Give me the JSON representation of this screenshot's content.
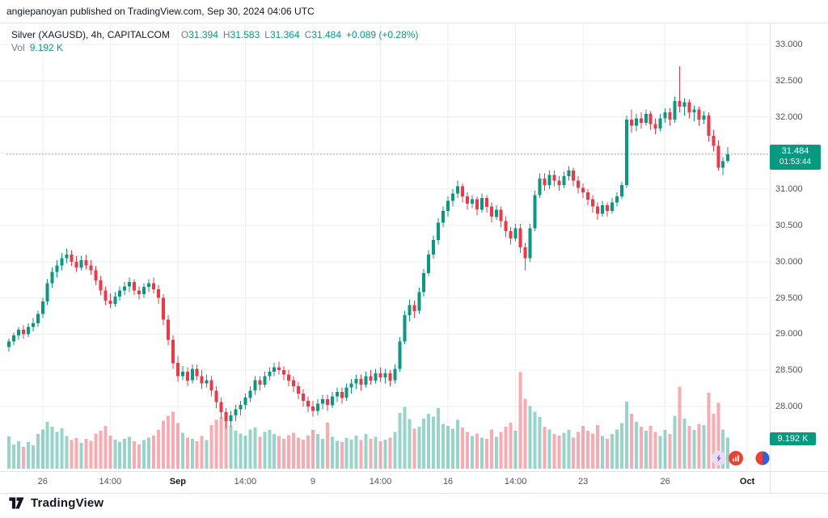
{
  "attribution": "angiepanoyan published on TradingView.com, Sep 30, 2024 04:06 UTC",
  "legend": {
    "title": "Silver (XAGUSD), 4h, CAPITALCOM",
    "o_label": "O",
    "o": "31.394",
    "h_label": "H",
    "h": "31.583",
    "l_label": "L",
    "l": "31.364",
    "c_label": "C",
    "c": "31.484",
    "change": "+0.089 (+0.28%)",
    "vol_label": "Vol",
    "vol_value": "9.192 K"
  },
  "badges": {
    "price": "31.484",
    "countdown": "01:53:44",
    "volume": "9.192 K"
  },
  "footer": {
    "logo_text": "TradingView"
  },
  "colors": {
    "up": "#089981",
    "down": "#f23645",
    "grid": "#eceff2",
    "axis_text": "#50535e",
    "last_line": "#a3a6af"
  },
  "chart_data": {
    "type": "candlestick",
    "symbol": "Silver (XAGUSD)",
    "interval": "4h",
    "exchange": "CAPITALCOM",
    "title": "Silver (XAGUSD), 4h, CAPITALCOM",
    "ohlc_readout": {
      "open": 31.394,
      "high": 31.583,
      "low": 31.364,
      "close": 31.484,
      "change": "+0.089",
      "change_pct": "+0.28%"
    },
    "last_price": 31.484,
    "countdown": "01:53:44",
    "volume_readout_k": 9.192,
    "y_axis": {
      "min": 28.0,
      "max": 33.0,
      "step": 0.5,
      "ticks": [
        {
          "v": 33.0,
          "t": "33.000"
        },
        {
          "v": 32.5,
          "t": "32.500"
        },
        {
          "v": 32.0,
          "t": "32.000"
        },
        {
          "v": 31.5,
          "t": "31.500"
        },
        {
          "v": 31.0,
          "t": "31.000"
        },
        {
          "v": 30.5,
          "t": "30.500"
        },
        {
          "v": 30.0,
          "t": "30.000"
        },
        {
          "v": 29.5,
          "t": "29.500"
        },
        {
          "v": 29.0,
          "t": "29.000"
        },
        {
          "v": 28.5,
          "t": "28.500"
        },
        {
          "v": 28.0,
          "t": "28.000"
        }
      ]
    },
    "x_axis": {
      "labels": [
        {
          "t": "26",
          "i": 7
        },
        {
          "t": "14:00",
          "i": 21
        },
        {
          "t": "Sep",
          "i": 35,
          "b": 1
        },
        {
          "t": "14:00",
          "i": 49
        },
        {
          "t": "9",
          "i": 63
        },
        {
          "t": "14:00",
          "i": 77
        },
        {
          "t": "16",
          "i": 91
        },
        {
          "t": "14:00",
          "i": 105
        },
        {
          "t": "23",
          "i": 119
        },
        {
          "t": "26",
          "i": 136
        },
        {
          "t": "Oct",
          "i": 153,
          "b": 1
        }
      ]
    },
    "candles": [
      [
        28.82,
        28.94,
        28.76,
        28.9
      ],
      [
        28.9,
        29.02,
        28.85,
        28.98
      ],
      [
        28.98,
        29.1,
        28.92,
        29.06
      ],
      [
        29.06,
        29.12,
        28.94,
        29.0
      ],
      [
        29.0,
        29.15,
        28.96,
        29.1
      ],
      [
        29.1,
        29.22,
        29.04,
        29.15
      ],
      [
        29.15,
        29.32,
        29.1,
        29.28
      ],
      [
        29.28,
        29.5,
        29.22,
        29.45
      ],
      [
        29.45,
        29.76,
        29.4,
        29.7
      ],
      [
        29.7,
        29.92,
        29.64,
        29.86
      ],
      [
        29.86,
        30.02,
        29.78,
        29.95
      ],
      [
        29.95,
        30.12,
        29.88,
        30.05
      ],
      [
        30.05,
        30.18,
        29.98,
        30.1
      ],
      [
        30.1,
        30.16,
        29.94,
        30.0
      ],
      [
        30.0,
        30.08,
        29.86,
        29.92
      ],
      [
        29.92,
        30.08,
        29.88,
        30.02
      ],
      [
        30.02,
        30.1,
        29.9,
        29.95
      ],
      [
        29.95,
        30.02,
        29.82,
        29.88
      ],
      [
        29.88,
        29.94,
        29.68,
        29.74
      ],
      [
        29.74,
        29.8,
        29.54,
        29.6
      ],
      [
        29.6,
        29.66,
        29.4,
        29.46
      ],
      [
        29.46,
        29.56,
        29.36,
        29.42
      ],
      [
        29.42,
        29.58,
        29.38,
        29.52
      ],
      [
        29.52,
        29.66,
        29.46,
        29.6
      ],
      [
        29.6,
        29.72,
        29.54,
        29.66
      ],
      [
        29.66,
        29.78,
        29.58,
        29.72
      ],
      [
        29.72,
        29.76,
        29.54,
        29.6
      ],
      [
        29.6,
        29.66,
        29.48,
        29.55
      ],
      [
        29.55,
        29.7,
        29.5,
        29.65
      ],
      [
        29.65,
        29.76,
        29.58,
        29.7
      ],
      [
        29.7,
        29.78,
        29.56,
        29.62
      ],
      [
        29.62,
        29.68,
        29.42,
        29.5
      ],
      [
        29.5,
        29.55,
        29.12,
        29.2
      ],
      [
        29.2,
        29.26,
        28.84,
        28.92
      ],
      [
        28.92,
        28.98,
        28.52,
        28.6
      ],
      [
        28.6,
        28.7,
        28.34,
        28.42
      ],
      [
        28.42,
        28.56,
        28.36,
        28.48
      ],
      [
        28.48,
        28.54,
        28.28,
        28.36
      ],
      [
        28.36,
        28.58,
        28.32,
        28.52
      ],
      [
        28.52,
        28.58,
        28.36,
        28.42
      ],
      [
        28.42,
        28.5,
        28.24,
        28.32
      ],
      [
        28.32,
        28.44,
        28.26,
        28.36
      ],
      [
        28.36,
        28.42,
        28.14,
        28.22
      ],
      [
        28.22,
        28.28,
        27.98,
        28.06
      ],
      [
        28.06,
        28.12,
        27.84,
        27.92
      ],
      [
        27.92,
        27.98,
        27.7,
        27.8
      ],
      [
        27.8,
        27.94,
        27.72,
        27.88
      ],
      [
        27.88,
        28.02,
        27.8,
        27.96
      ],
      [
        27.96,
        28.08,
        27.88,
        28.02
      ],
      [
        28.02,
        28.18,
        27.96,
        28.12
      ],
      [
        28.12,
        28.28,
        28.06,
        28.22
      ],
      [
        28.22,
        28.42,
        28.16,
        28.36
      ],
      [
        28.36,
        28.42,
        28.22,
        28.3
      ],
      [
        28.3,
        28.48,
        28.26,
        28.42
      ],
      [
        28.42,
        28.54,
        28.36,
        28.48
      ],
      [
        28.48,
        28.6,
        28.42,
        28.54
      ],
      [
        28.54,
        28.62,
        28.44,
        28.5
      ],
      [
        28.5,
        28.56,
        28.36,
        28.44
      ],
      [
        28.44,
        28.5,
        28.28,
        28.36
      ],
      [
        28.36,
        28.42,
        28.2,
        28.28
      ],
      [
        28.28,
        28.34,
        28.1,
        28.18
      ],
      [
        28.18,
        28.24,
        28.0,
        28.08
      ],
      [
        28.08,
        28.14,
        27.92,
        28.0
      ],
      [
        28.0,
        28.08,
        27.86,
        27.94
      ],
      [
        27.94,
        28.1,
        27.88,
        28.04
      ],
      [
        28.04,
        28.16,
        27.96,
        28.1
      ],
      [
        28.1,
        28.16,
        27.94,
        28.02
      ],
      [
        28.02,
        28.2,
        27.98,
        28.14
      ],
      [
        28.14,
        28.26,
        28.06,
        28.2
      ],
      [
        28.2,
        28.26,
        28.04,
        28.12
      ],
      [
        28.12,
        28.32,
        28.08,
        28.26
      ],
      [
        28.26,
        28.38,
        28.18,
        28.32
      ],
      [
        28.32,
        28.44,
        28.24,
        28.38
      ],
      [
        28.38,
        28.44,
        28.22,
        28.3
      ],
      [
        28.3,
        28.48,
        28.26,
        28.42
      ],
      [
        28.42,
        28.5,
        28.3,
        28.36
      ],
      [
        28.36,
        28.52,
        28.32,
        28.46
      ],
      [
        28.46,
        28.54,
        28.34,
        28.4
      ],
      [
        28.4,
        28.52,
        28.32,
        28.46
      ],
      [
        28.46,
        28.5,
        28.28,
        28.36
      ],
      [
        28.36,
        28.58,
        28.32,
        28.52
      ],
      [
        28.52,
        28.96,
        28.48,
        28.9
      ],
      [
        28.9,
        29.32,
        28.86,
        29.26
      ],
      [
        29.26,
        29.48,
        29.18,
        29.4
      ],
      [
        29.4,
        29.46,
        29.22,
        29.32
      ],
      [
        29.32,
        29.64,
        29.28,
        29.58
      ],
      [
        29.58,
        29.9,
        29.52,
        29.84
      ],
      [
        29.84,
        30.16,
        29.8,
        30.1
      ],
      [
        30.1,
        30.36,
        30.04,
        30.3
      ],
      [
        30.3,
        30.6,
        30.24,
        30.54
      ],
      [
        30.54,
        30.76,
        30.48,
        30.7
      ],
      [
        30.7,
        30.9,
        30.62,
        30.84
      ],
      [
        30.84,
        31.0,
        30.76,
        30.94
      ],
      [
        30.94,
        31.12,
        30.88,
        31.04
      ],
      [
        31.04,
        31.08,
        30.82,
        30.9
      ],
      [
        30.9,
        30.96,
        30.72,
        30.8
      ],
      [
        30.8,
        30.92,
        30.74,
        30.86
      ],
      [
        30.86,
        30.9,
        30.64,
        30.72
      ],
      [
        30.72,
        30.94,
        30.68,
        30.88
      ],
      [
        30.88,
        30.92,
        30.68,
        30.76
      ],
      [
        30.76,
        30.82,
        30.54,
        30.62
      ],
      [
        30.62,
        30.78,
        30.58,
        30.72
      ],
      [
        30.72,
        30.76,
        30.48,
        30.56
      ],
      [
        30.56,
        30.62,
        30.34,
        30.42
      ],
      [
        30.42,
        30.48,
        30.24,
        30.32
      ],
      [
        30.32,
        30.52,
        30.28,
        30.46
      ],
      [
        30.46,
        30.52,
        30.12,
        30.2
      ],
      [
        30.2,
        30.26,
        29.88,
        30.05
      ],
      [
        30.05,
        30.52,
        30.0,
        30.46
      ],
      [
        30.46,
        30.98,
        30.42,
        30.92
      ],
      [
        30.92,
        31.22,
        30.88,
        31.15
      ],
      [
        31.15,
        31.22,
        30.98,
        31.06
      ],
      [
        31.06,
        31.26,
        31.0,
        31.2
      ],
      [
        31.2,
        31.26,
        31.04,
        31.12
      ],
      [
        31.12,
        31.18,
        30.98,
        31.06
      ],
      [
        31.06,
        31.24,
        31.02,
        31.18
      ],
      [
        31.18,
        31.32,
        31.12,
        31.26
      ],
      [
        31.26,
        31.3,
        31.04,
        31.12
      ],
      [
        31.12,
        31.18,
        30.94,
        31.02
      ],
      [
        31.02,
        31.08,
        30.88,
        30.96
      ],
      [
        30.96,
        31.0,
        30.78,
        30.86
      ],
      [
        30.86,
        30.92,
        30.68,
        30.76
      ],
      [
        30.76,
        30.82,
        30.58,
        30.66
      ],
      [
        30.66,
        30.84,
        30.62,
        30.78
      ],
      [
        30.78,
        30.82,
        30.62,
        30.7
      ],
      [
        30.7,
        30.88,
        30.66,
        30.82
      ],
      [
        30.82,
        30.96,
        30.76,
        30.9
      ],
      [
        30.9,
        31.1,
        30.86,
        31.06
      ],
      [
        31.06,
        32.02,
        31.02,
        31.96
      ],
      [
        31.96,
        32.1,
        31.78,
        31.88
      ],
      [
        31.88,
        32.04,
        31.8,
        31.98
      ],
      [
        31.98,
        32.06,
        31.84,
        31.92
      ],
      [
        31.92,
        32.1,
        31.88,
        32.04
      ],
      [
        32.04,
        32.08,
        31.82,
        31.9
      ],
      [
        31.9,
        31.98,
        31.76,
        31.84
      ],
      [
        31.84,
        32.04,
        31.8,
        31.98
      ],
      [
        31.98,
        32.12,
        31.92,
        32.06
      ],
      [
        32.06,
        32.12,
        31.88,
        31.96
      ],
      [
        31.96,
        32.28,
        31.92,
        32.22
      ],
      [
        32.22,
        32.7,
        32.06,
        32.14
      ],
      [
        32.14,
        32.26,
        32.02,
        32.2
      ],
      [
        32.2,
        32.24,
        31.98,
        32.06
      ],
      [
        32.06,
        32.16,
        31.94,
        32.1
      ],
      [
        32.1,
        32.14,
        31.88,
        31.96
      ],
      [
        31.96,
        32.08,
        31.9,
        32.02
      ],
      [
        32.02,
        32.06,
        31.66,
        31.74
      ],
      [
        31.74,
        31.82,
        31.52,
        31.6
      ],
      [
        31.6,
        31.68,
        31.26,
        31.3
      ],
      [
        31.3,
        31.45,
        31.2,
        31.39
      ],
      [
        31.394,
        31.583,
        31.364,
        31.484
      ]
    ],
    "volumes_k": [
      9.5,
      7.2,
      8.1,
      6.4,
      7.8,
      6.9,
      10.2,
      11.5,
      13.8,
      12.4,
      10.8,
      11.9,
      9.6,
      8.4,
      9.1,
      7.6,
      8.8,
      8.2,
      10.4,
      11.2,
      12.6,
      9.8,
      8.6,
      7.9,
      8.8,
      9.4,
      8.1,
      7.2,
      8.5,
      9.2,
      9.8,
      11.4,
      14.2,
      15.6,
      16.8,
      13.4,
      10.6,
      9.2,
      8.8,
      8.1,
      9.6,
      8.4,
      12.8,
      14.4,
      15.2,
      16.4,
      12.6,
      11.2,
      10.4,
      9.8,
      11.6,
      12.2,
      9.4,
      10.8,
      11.4,
      10.2,
      9.6,
      8.8,
      9.9,
      10.6,
      9.2,
      8.6,
      9.8,
      11.4,
      10.2,
      8.8,
      13.6,
      9.4,
      8.2,
      7.8,
      9.1,
      8.6,
      9.8,
      8.4,
      10.2,
      8.8,
      9.4,
      8.1,
      8.6,
      9.2,
      10.8,
      16.4,
      18.2,
      14.6,
      11.8,
      12.4,
      14.8,
      16.2,
      15.4,
      17.8,
      13.2,
      12.6,
      11.8,
      14.4,
      12.2,
      10.8,
      9.6,
      10.4,
      9.2,
      8.8,
      11.6,
      9.4,
      10.8,
      12.4,
      13.6,
      11.2,
      28.4,
      20.6,
      18.4,
      16.8,
      15.2,
      12.4,
      11.6,
      10.2,
      9.8,
      10.6,
      11.4,
      9.2,
      10.8,
      12.6,
      11.2,
      10.4,
      12.8,
      9.6,
      8.8,
      10.2,
      11.6,
      13.4,
      19.8,
      16.2,
      13.8,
      12.4,
      11.2,
      12.6,
      10.8,
      9.6,
      11.4,
      10.2,
      15.6,
      24.2,
      14.8,
      12.6,
      11.4,
      13.2,
      12.8,
      22.4,
      16.2,
      19.4,
      11.6,
      9.192
    ]
  }
}
